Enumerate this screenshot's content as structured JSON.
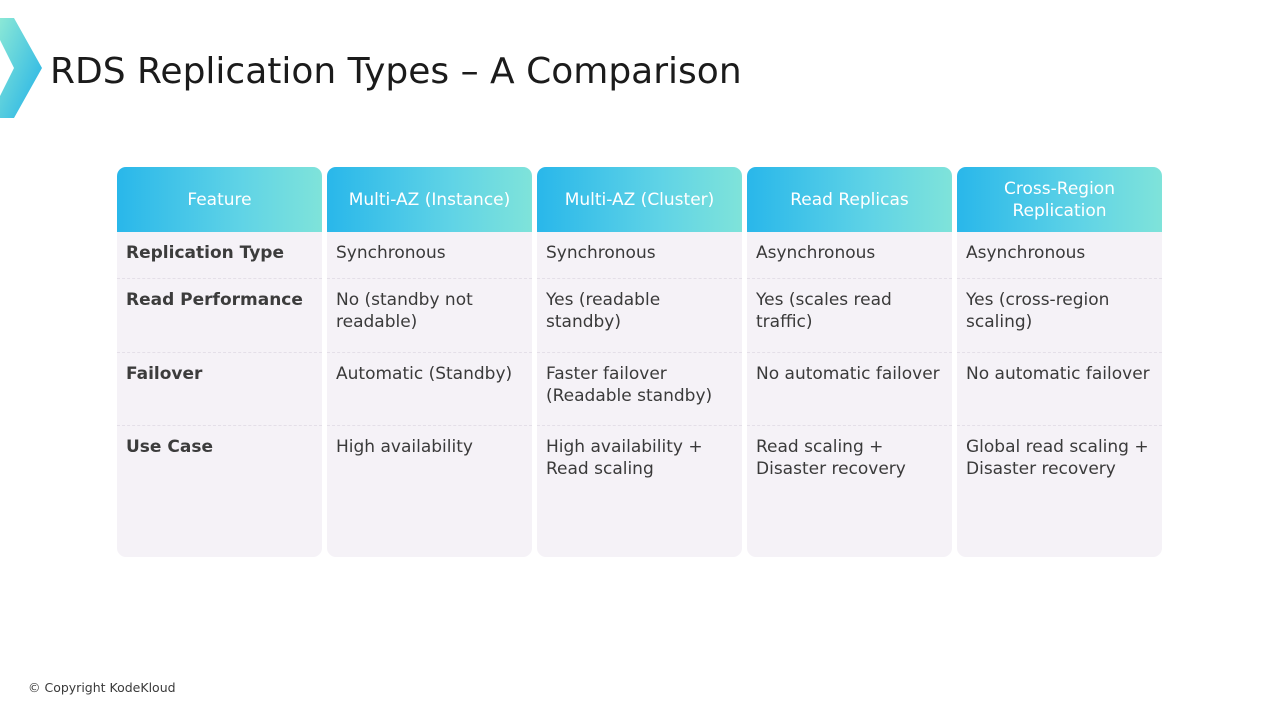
{
  "slide": {
    "title": "RDS Replication Types – A Comparison"
  },
  "brand": {
    "logo_icon": "kodekloud-chevron-logo",
    "accent_colors": [
      "#29b7ea",
      "#7fe3da"
    ]
  },
  "table": {
    "columns": [
      {
        "header": "Feature",
        "cells": [
          "Replication Type",
          "Read Performance",
          "Failover",
          "Use Case"
        ]
      },
      {
        "header": "Multi-AZ (Instance)",
        "cells": [
          "Synchronous",
          "No (standby not readable)",
          "Automatic (Standby)",
          "High availability"
        ]
      },
      {
        "header": "Multi-AZ (Cluster)",
        "cells": [
          "Synchronous",
          "Yes (readable standby)",
          "Faster failover (Readable standby)",
          "High availability + Read scaling"
        ]
      },
      {
        "header": "Read Replicas",
        "cells": [
          "Asynchronous",
          "Yes (scales read traffic)",
          "No automatic failover",
          "Read scaling + Disaster recovery"
        ]
      },
      {
        "header": "Cross-Region Replication",
        "cells": [
          "Asynchronous",
          "Yes (cross-region scaling)",
          "No automatic failover",
          "Global read scaling + Disaster recovery"
        ]
      }
    ]
  },
  "footer": {
    "copyright": "© Copyright KodeKloud"
  }
}
